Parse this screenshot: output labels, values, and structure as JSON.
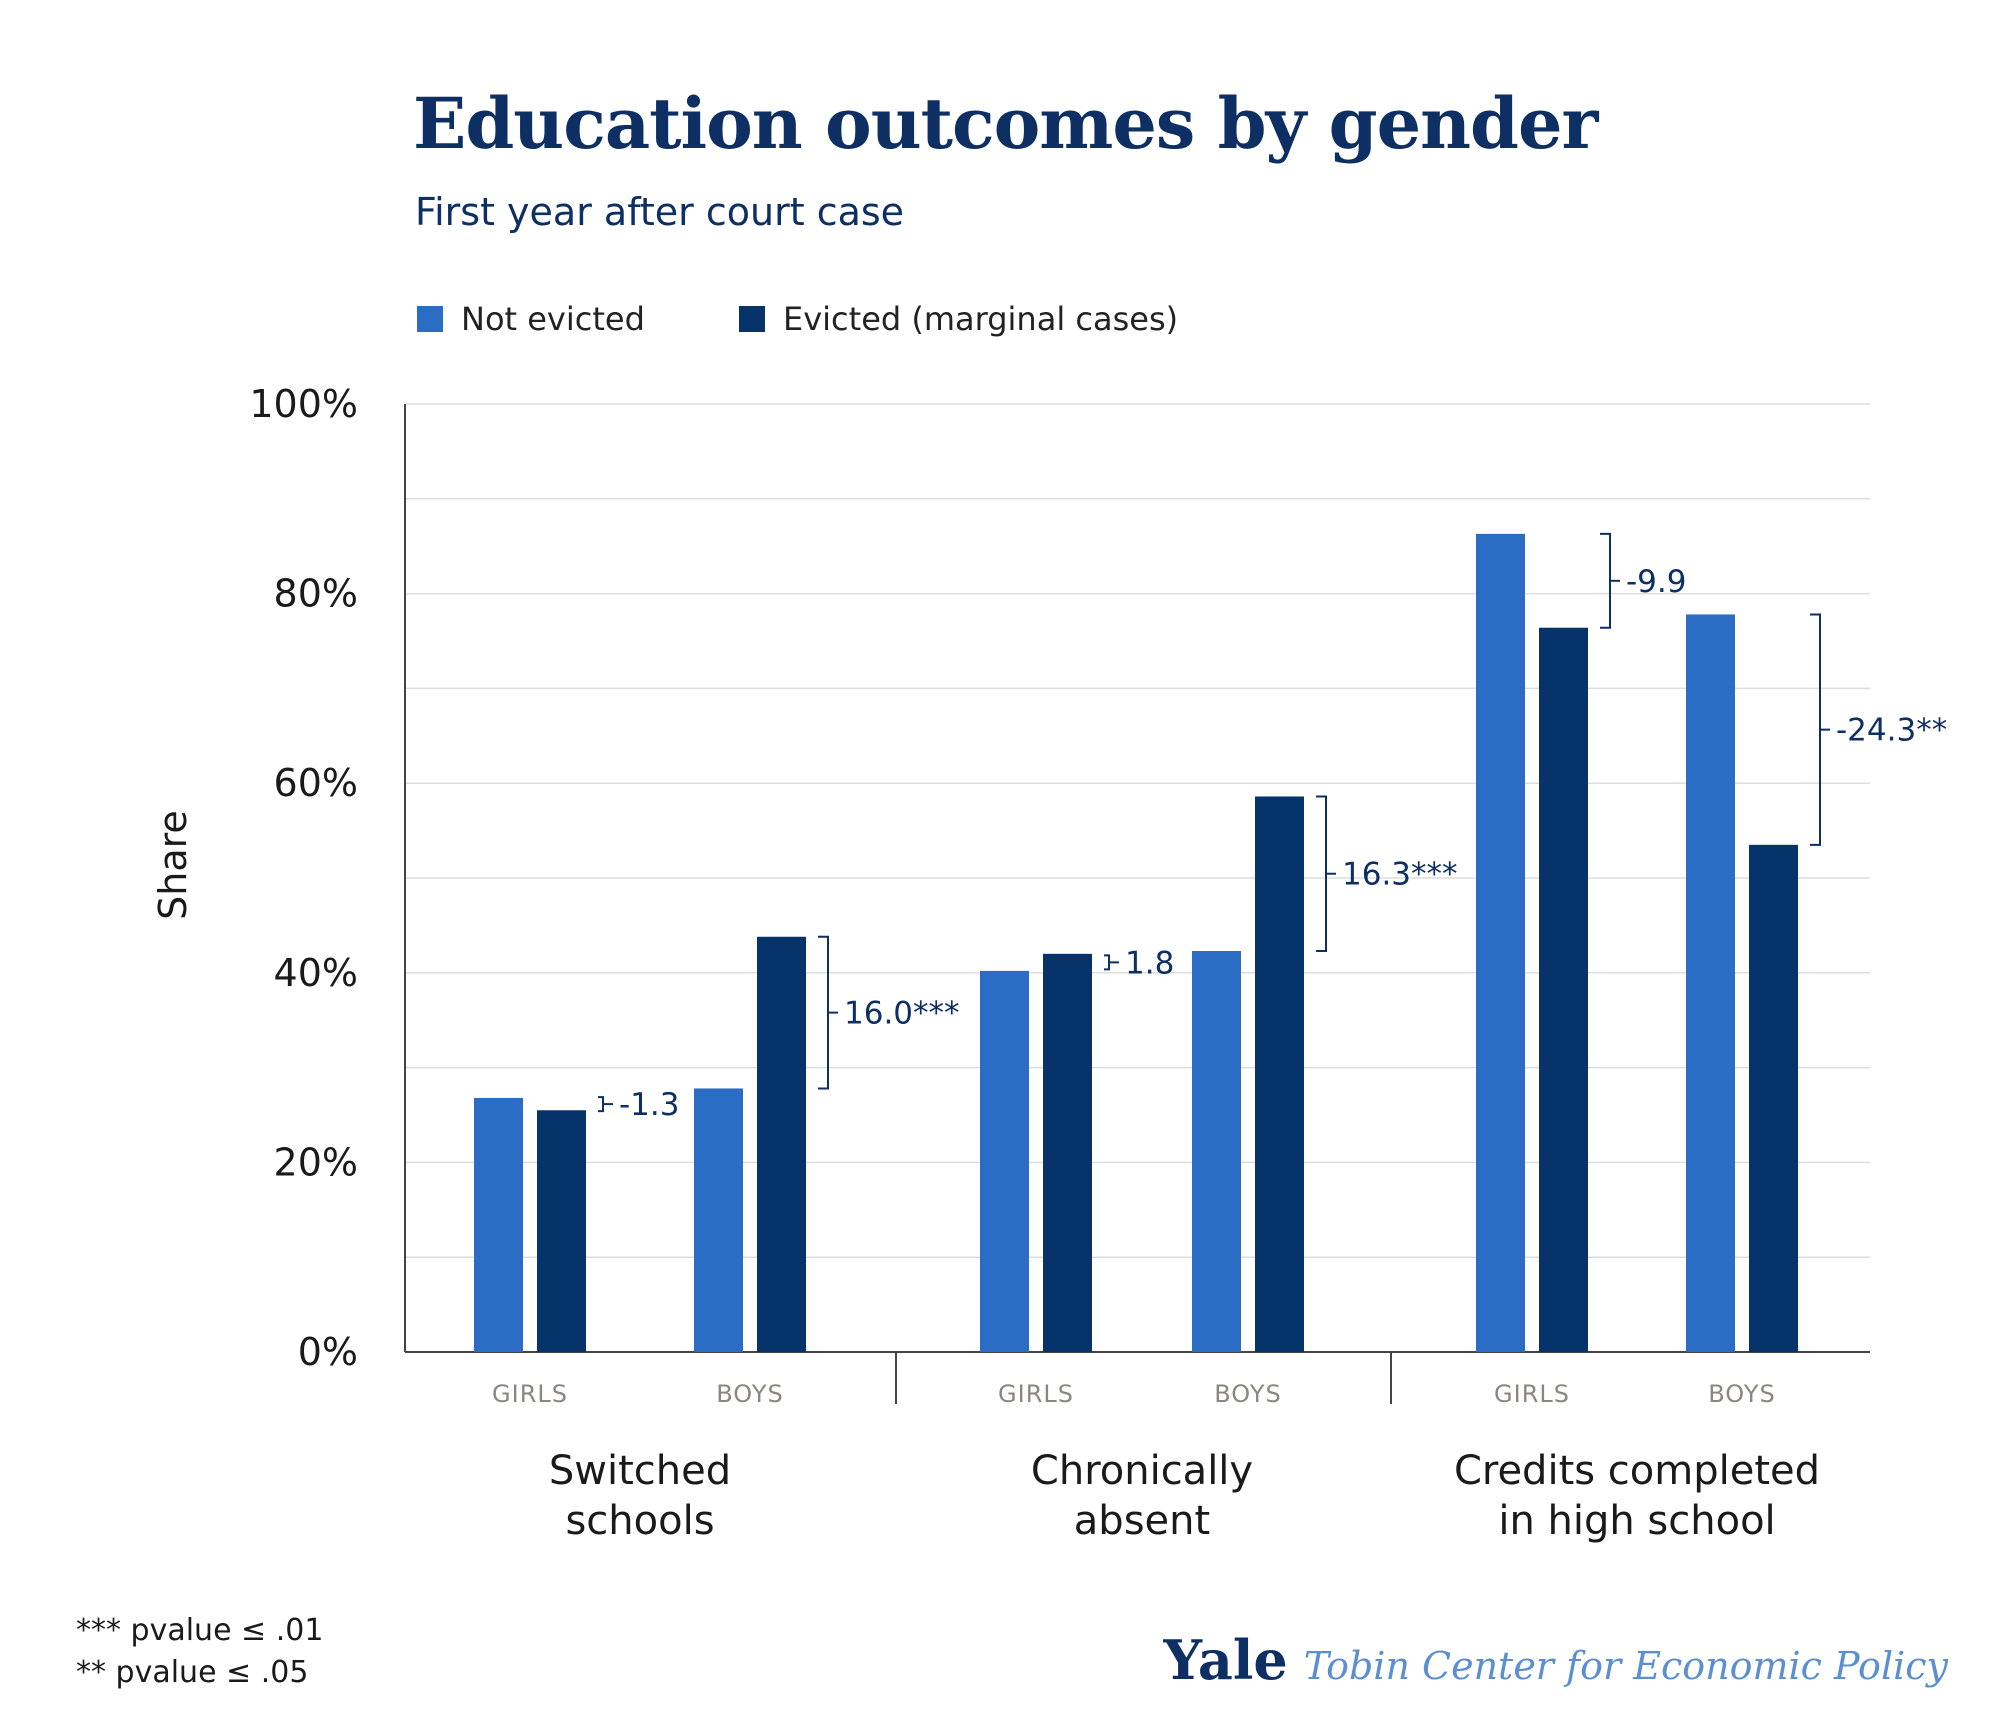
{
  "chart_data": {
    "type": "bar",
    "title": "Education outcomes by gender",
    "subtitle": "First year after court case",
    "ylabel": "Share",
    "ylim": [
      0,
      100
    ],
    "yticks": [
      "0%",
      "20%",
      "40%",
      "60%",
      "80%",
      "100%"
    ],
    "legend": {
      "placement": "top-left",
      "items": [
        {
          "name": "Not evicted",
          "color": "#2b6cc4"
        },
        {
          "name": "Evicted (marginal cases)",
          "color": "#07336b"
        }
      ]
    },
    "groups": [
      {
        "name_lines": [
          "Switched",
          "schools"
        ],
        "subgroups": [
          {
            "label": "GIRLS",
            "values": [
              26.8,
              25.5
            ],
            "diff": "-1.3"
          },
          {
            "label": "BOYS",
            "values": [
              27.8,
              43.8
            ],
            "diff": "16.0***"
          }
        ]
      },
      {
        "name_lines": [
          "Chronically",
          "absent"
        ],
        "subgroups": [
          {
            "label": "GIRLS",
            "values": [
              40.2,
              42.0
            ],
            "diff": "1.8"
          },
          {
            "label": "BOYS",
            "values": [
              42.3,
              58.6
            ],
            "diff": "16.3***"
          }
        ]
      },
      {
        "name_lines": [
          "Credits completed",
          "in high school"
        ],
        "subgroups": [
          {
            "label": "GIRLS",
            "values": [
              86.3,
              76.4
            ],
            "diff": "-9.9"
          },
          {
            "label": "BOYS",
            "values": [
              77.8,
              53.5
            ],
            "diff": "-24.3**"
          }
        ]
      }
    ],
    "grid": true
  },
  "footnotes": [
    "*** pvalue ≤ .01",
    "** pvalue ≤ .05"
  ],
  "branding": {
    "yale": "Yale",
    "center": "Tobin Center for Economic Policy"
  },
  "colors": {
    "title": "#0d2f63",
    "gridline": "#dddddd",
    "axis": "#444444",
    "sublabel": "#8c8580",
    "diff": "#0d2f63"
  }
}
